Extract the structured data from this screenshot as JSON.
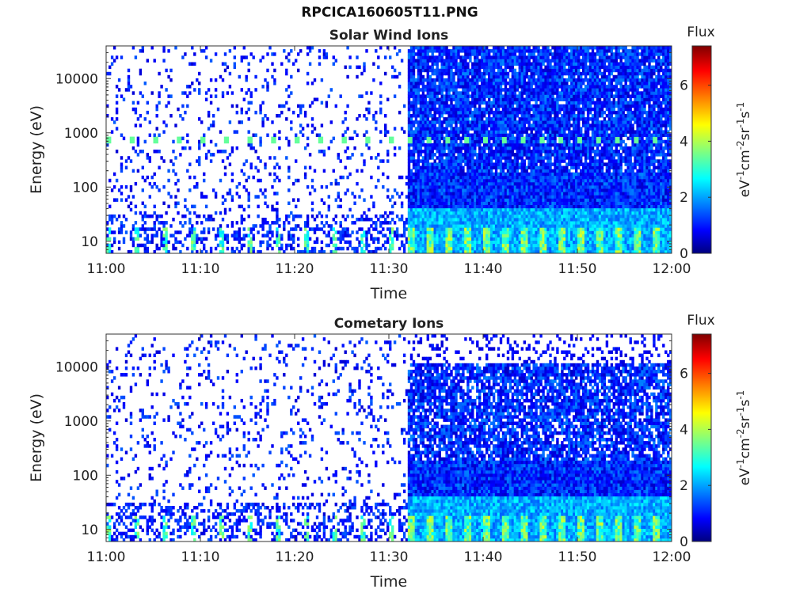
{
  "figure_title": "RPCICA160605T11.PNG",
  "chart_data": [
    {
      "type": "heatmap",
      "title": "Solar Wind Ions",
      "xlabel": "Time",
      "ylabel": "Energy (eV)",
      "x_ticks": [
        "11:00",
        "11:10",
        "11:20",
        "11:30",
        "11:40",
        "11:50",
        "12:00"
      ],
      "x_range": [
        "11:00",
        "12:00"
      ],
      "y_ticks": [
        "10",
        "100",
        "1000",
        "10000"
      ],
      "y_range": [
        6,
        40000
      ],
      "y_scale": "log",
      "colorbar": {
        "label": "Flux",
        "unit": "eV-1cm-2sr-1s-1",
        "range": [
          0,
          7.4
        ],
        "ticks": [
          "0",
          "2",
          "4",
          "6"
        ],
        "colormap": "jet"
      },
      "regions": [
        {
          "start": "11:00",
          "end": "11:32",
          "description_values": {
            "background_flux": 0,
            "sparse_counts": 1
          }
        },
        {
          "start": "11:32",
          "end": "12:00",
          "description_values": {
            "background_flux": 1.2,
            "low_energy_flux": 2.5
          }
        }
      ],
      "peak_energy_eV": 750,
      "peak_flux": 3.5
    },
    {
      "type": "heatmap",
      "title": "Cometary Ions",
      "xlabel": "Time",
      "ylabel": "Energy (eV)",
      "x_ticks": [
        "11:00",
        "11:10",
        "11:20",
        "11:30",
        "11:40",
        "11:50",
        "12:00"
      ],
      "x_range": [
        "11:00",
        "12:00"
      ],
      "y_ticks": [
        "10",
        "100",
        "1000",
        "10000"
      ],
      "y_range": [
        6,
        40000
      ],
      "y_scale": "log",
      "colorbar": {
        "label": "Flux",
        "unit": "eV-1cm-2sr-1s-1",
        "range": [
          0,
          7.4
        ],
        "ticks": [
          "0",
          "2",
          "4",
          "6"
        ],
        "colormap": "jet"
      },
      "regions": [
        {
          "start": "11:00",
          "end": "11:32",
          "description_values": {
            "background_flux": 0,
            "sparse_counts": 1
          }
        },
        {
          "start": "11:32",
          "end": "12:00",
          "description_values": {
            "background_flux": 1.0,
            "low_energy_flux": 2.8
          }
        }
      ],
      "upper_energy_cutoff_eV": 11000,
      "peak_flux": 4.2
    }
  ]
}
